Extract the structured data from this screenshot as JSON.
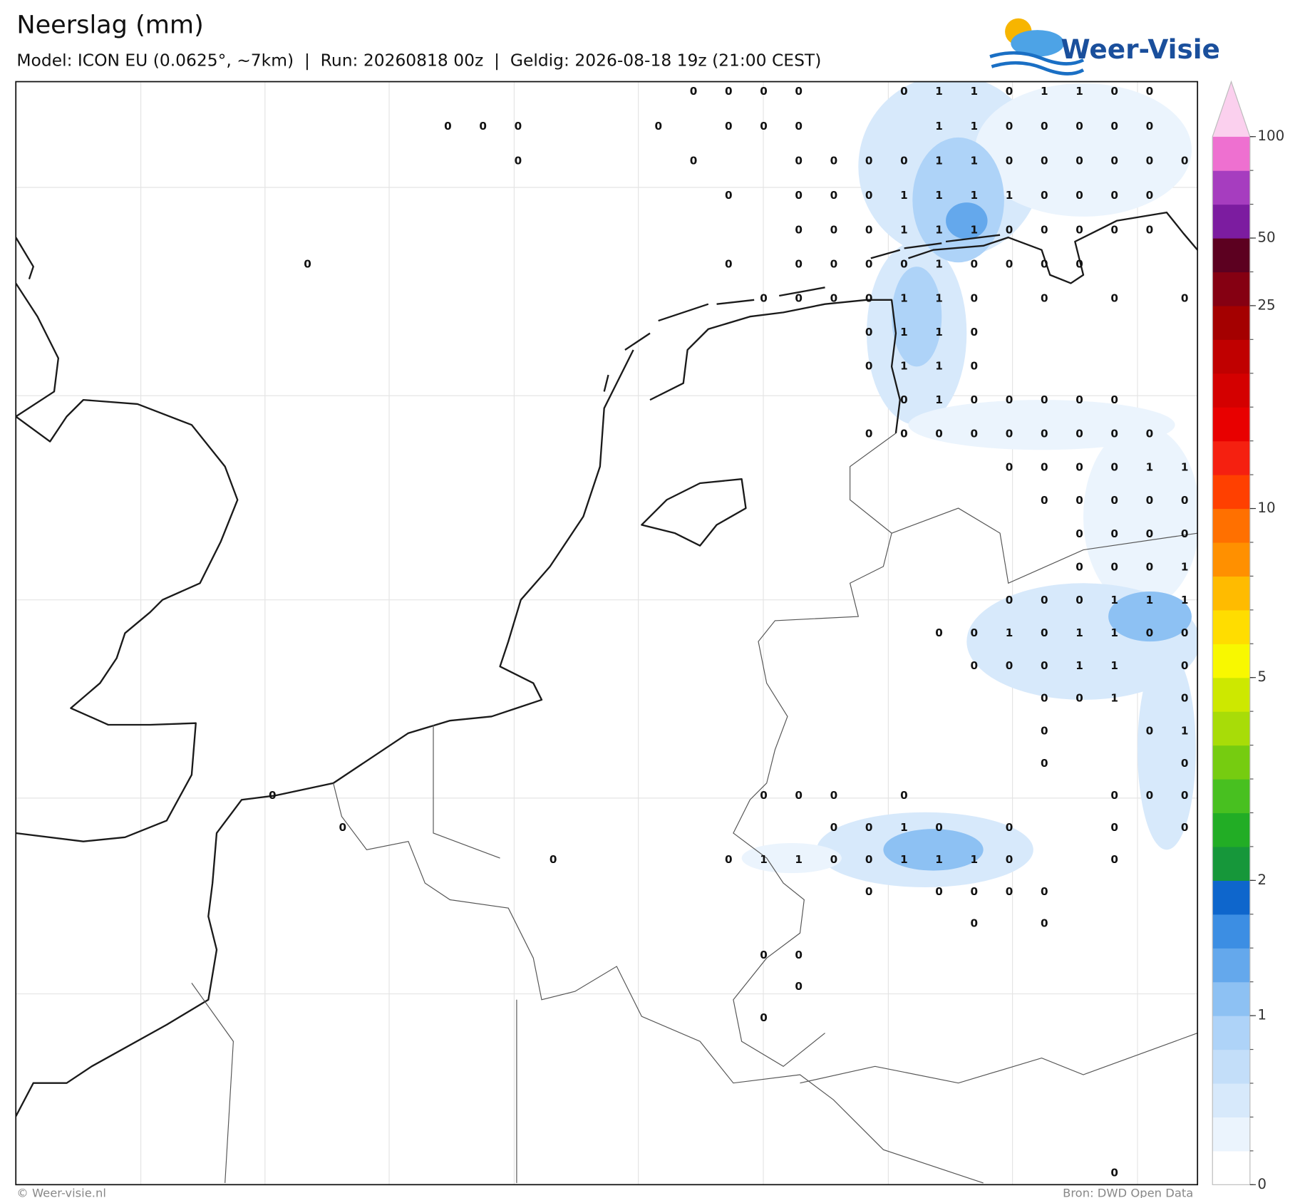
{
  "header": {
    "title": "Neerslag (mm)",
    "subtitle": "Model: ICON EU (0.0625°, ~7km)  |  Run: 20260818 00z  |  Geldig: 2026-08-18 19z (21:00 CEST)"
  },
  "logo": {
    "text": "Weer-Visie"
  },
  "map": {
    "grid_labels": [
      [
        null,
        null,
        null,
        null,
        null,
        null,
        null,
        null,
        null,
        null,
        null,
        null,
        0,
        0,
        0,
        0,
        null,
        null,
        0,
        1,
        1,
        0,
        1,
        1,
        0,
        0
      ],
      [
        null,
        null,
        null,
        null,
        null,
        0,
        0,
        0,
        null,
        null,
        null,
        0,
        null,
        0,
        0,
        0,
        null,
        null,
        null,
        1,
        1,
        0,
        0,
        0,
        0,
        0
      ],
      [
        null,
        null,
        null,
        null,
        null,
        null,
        null,
        0,
        null,
        null,
        null,
        null,
        0,
        null,
        null,
        0,
        0,
        0,
        0,
        1,
        1,
        0,
        0,
        0,
        0,
        0,
        0
      ],
      [
        null,
        null,
        null,
        null,
        null,
        null,
        null,
        null,
        null,
        null,
        null,
        null,
        null,
        0,
        null,
        0,
        0,
        0,
        1,
        1,
        1,
        1,
        0,
        0,
        0,
        0
      ],
      [
        null,
        null,
        null,
        null,
        null,
        null,
        null,
        null,
        null,
        null,
        null,
        null,
        null,
        null,
        null,
        0,
        0,
        0,
        1,
        1,
        1,
        0,
        0,
        0,
        0,
        0
      ],
      [
        null,
        0,
        null,
        null,
        null,
        null,
        null,
        null,
        null,
        null,
        null,
        null,
        null,
        0,
        null,
        0,
        0,
        0,
        0,
        1,
        0,
        0,
        0,
        0
      ],
      [
        null,
        null,
        null,
        null,
        null,
        null,
        null,
        null,
        null,
        null,
        null,
        null,
        null,
        null,
        0,
        0,
        0,
        0,
        1,
        1,
        0,
        null,
        0,
        null,
        0,
        null,
        0
      ],
      [
        null,
        null,
        null,
        null,
        null,
        null,
        null,
        null,
        null,
        null,
        null,
        null,
        null,
        null,
        null,
        null,
        null,
        0,
        1,
        1,
        0
      ],
      [
        null,
        null,
        null,
        null,
        null,
        null,
        null,
        null,
        null,
        null,
        null,
        null,
        null,
        null,
        null,
        null,
        null,
        0,
        1,
        1,
        0
      ],
      [
        null,
        null,
        null,
        null,
        null,
        null,
        null,
        null,
        null,
        null,
        null,
        null,
        null,
        null,
        null,
        null,
        null,
        null,
        0,
        1,
        0,
        0,
        0,
        0,
        0
      ],
      [
        null,
        null,
        null,
        null,
        null,
        null,
        null,
        null,
        null,
        null,
        null,
        null,
        null,
        null,
        null,
        null,
        null,
        0,
        0,
        0,
        0,
        0,
        0,
        0,
        0,
        0
      ],
      [
        null,
        null,
        null,
        null,
        null,
        null,
        null,
        null,
        null,
        null,
        null,
        null,
        null,
        null,
        null,
        null,
        null,
        null,
        null,
        null,
        null,
        0,
        0,
        0,
        0,
        1,
        1
      ],
      [
        null,
        null,
        null,
        null,
        null,
        null,
        null,
        null,
        null,
        null,
        null,
        null,
        null,
        null,
        null,
        null,
        null,
        null,
        null,
        null,
        null,
        null,
        0,
        0,
        0,
        0,
        0
      ],
      [
        null,
        null,
        null,
        null,
        null,
        null,
        null,
        null,
        null,
        null,
        null,
        null,
        null,
        null,
        null,
        null,
        null,
        null,
        null,
        null,
        null,
        null,
        null,
        0,
        0,
        0,
        0
      ],
      [
        null,
        null,
        null,
        null,
        null,
        null,
        null,
        null,
        null,
        null,
        null,
        null,
        null,
        null,
        null,
        null,
        null,
        null,
        null,
        null,
        null,
        null,
        null,
        0,
        0,
        0,
        1
      ],
      [
        null,
        null,
        null,
        null,
        null,
        null,
        null,
        null,
        null,
        null,
        null,
        null,
        null,
        null,
        null,
        null,
        null,
        null,
        null,
        null,
        null,
        0,
        0,
        0,
        1,
        1,
        1
      ],
      [
        null,
        null,
        null,
        null,
        null,
        null,
        null,
        null,
        null,
        null,
        null,
        null,
        null,
        null,
        null,
        null,
        null,
        null,
        null,
        0,
        0,
        1,
        0,
        1,
        1,
        0,
        0
      ],
      [
        null,
        null,
        null,
        null,
        null,
        null,
        null,
        null,
        null,
        null,
        null,
        null,
        null,
        null,
        null,
        null,
        null,
        null,
        null,
        null,
        0,
        0,
        0,
        1,
        1,
        null,
        0
      ],
      [
        null,
        null,
        null,
        null,
        null,
        null,
        null,
        null,
        null,
        null,
        null,
        null,
        null,
        null,
        null,
        null,
        null,
        null,
        null,
        null,
        null,
        null,
        0,
        0,
        1,
        null,
        0
      ],
      [
        null,
        null,
        null,
        null,
        null,
        null,
        null,
        null,
        null,
        null,
        null,
        null,
        null,
        null,
        null,
        null,
        null,
        null,
        null,
        null,
        null,
        null,
        0,
        null,
        null,
        0,
        1
      ],
      [
        null,
        null,
        null,
        null,
        null,
        null,
        null,
        null,
        null,
        null,
        null,
        null,
        null,
        null,
        null,
        null,
        null,
        null,
        null,
        null,
        null,
        null,
        0,
        null,
        null,
        null,
        0
      ],
      [
        0,
        null,
        null,
        null,
        null,
        null,
        null,
        null,
        null,
        null,
        null,
        null,
        null,
        null,
        0,
        0,
        0,
        null,
        0,
        null,
        null,
        null,
        null,
        null,
        0,
        0,
        0
      ],
      [
        null,
        null,
        0,
        null,
        null,
        null,
        null,
        null,
        null,
        null,
        null,
        null,
        null,
        null,
        null,
        null,
        0,
        0,
        1,
        0,
        null,
        0,
        null,
        null,
        0,
        null,
        0
      ],
      [
        null,
        null,
        null,
        null,
        null,
        null,
        null,
        null,
        0,
        null,
        null,
        null,
        null,
        0,
        1,
        1,
        0,
        0,
        1,
        1,
        1,
        0,
        null,
        null,
        0
      ],
      [
        null,
        null,
        null,
        null,
        null,
        null,
        null,
        null,
        null,
        null,
        null,
        null,
        null,
        null,
        null,
        null,
        null,
        0,
        null,
        0,
        0,
        0,
        0
      ],
      [
        null,
        null,
        null,
        null,
        null,
        null,
        null,
        null,
        null,
        null,
        null,
        null,
        null,
        null,
        null,
        null,
        null,
        null,
        null,
        null,
        0,
        null,
        0
      ],
      [
        null,
        null,
        null,
        null,
        null,
        null,
        null,
        null,
        null,
        null,
        null,
        null,
        null,
        null,
        0,
        0
      ],
      [
        null,
        null,
        null,
        null,
        null,
        null,
        null,
        null,
        null,
        null,
        null,
        null,
        null,
        null,
        null,
        0
      ],
      [
        null,
        null,
        null,
        null,
        null,
        null,
        null,
        null,
        null,
        null,
        null,
        null,
        null,
        null,
        0
      ],
      [],
      [],
      [],
      [],
      [
        null,
        null,
        null,
        null,
        null,
        null,
        null,
        null,
        null,
        null,
        null,
        null,
        null,
        null,
        null,
        null,
        null,
        null,
        null,
        null,
        null,
        null,
        null,
        null,
        0
      ]
    ]
  },
  "colorbar": {
    "levels": [
      0,
      0.1,
      0.25,
      0.5,
      0.75,
      1,
      1.25,
      1.5,
      1.75,
      2,
      2.5,
      3,
      3.5,
      4,
      4.5,
      5,
      6,
      7,
      8,
      9,
      10,
      12,
      14,
      16,
      18,
      20,
      25,
      35,
      50,
      65,
      80,
      100
    ],
    "colors": [
      "#ffffff",
      "#ebf4fd",
      "#d7e9fb",
      "#c3def9",
      "#aed3f8",
      "#8dc1f3",
      "#64a8ec",
      "#3c8ee3",
      "#0e66cc",
      "#16973a",
      "#22ad25",
      "#48c020",
      "#76cc10",
      "#a8dc08",
      "#cde800",
      "#f8f800",
      "#ffdd00",
      "#ffbb00",
      "#ff9000",
      "#ff7000",
      "#ff4000",
      "#f52010",
      "#e80000",
      "#d40000",
      "#c00000",
      "#a40000",
      "#850012",
      "#5c0020",
      "#7c1ca0",
      "#a63dbf",
      "#ee70d0"
    ],
    "extend_color": "#fbd0ee",
    "ticks": [
      0,
      1,
      2,
      5,
      10,
      25,
      50,
      100
    ]
  },
  "footer": {
    "left": "© Weer-visie.nl",
    "right": "Bron: DWD Open Data"
  }
}
